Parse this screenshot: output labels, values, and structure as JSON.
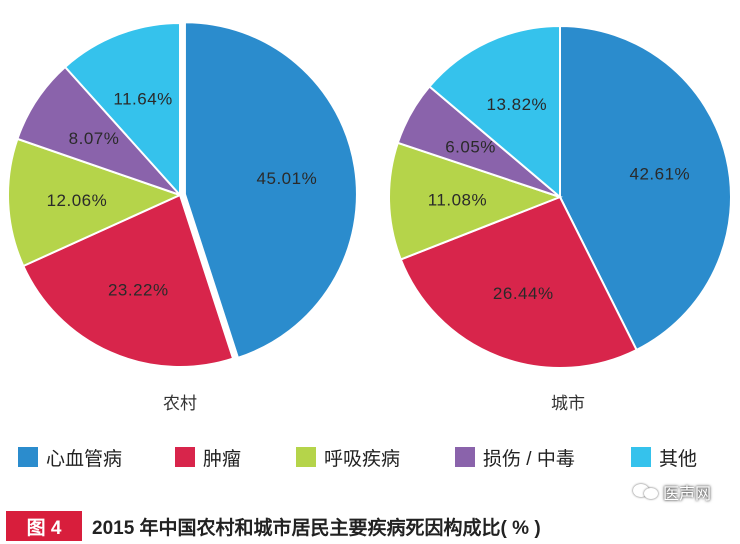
{
  "chart_data": [
    {
      "type": "pie",
      "title": "农村",
      "categories": [
        "心血管病",
        "肿瘤",
        "呼吸疾病",
        "损伤 / 中毒",
        "其他"
      ],
      "values": [
        45.01,
        23.22,
        12.06,
        8.07,
        11.64
      ],
      "labels": [
        "45.01%",
        "23.22%",
        "12.06%",
        "8.07%",
        "11.64%"
      ],
      "exploded_slice": "心血管病"
    },
    {
      "type": "pie",
      "title": "城市",
      "categories": [
        "心血管病",
        "肿瘤",
        "呼吸疾病",
        "损伤 / 中毒",
        "其他"
      ],
      "values": [
        42.61,
        26.44,
        11.08,
        6.05,
        13.82
      ],
      "labels": [
        "42.61%",
        "26.44%",
        "11.08%",
        "6.05%",
        "13.82%"
      ]
    }
  ],
  "legend": [
    {
      "label": "心血管病",
      "color": "#2b8ccd"
    },
    {
      "label": "肿瘤",
      "color": "#d8254b"
    },
    {
      "label": "呼吸疾病",
      "color": "#b5d44a"
    },
    {
      "label": "损伤 / 中毒",
      "color": "#8a63ab"
    },
    {
      "label": "其他",
      "color": "#35c2ec"
    }
  ],
  "figure": {
    "badge": "图 4",
    "caption": "2015 年中国农村和城市居民主要疾病死因构成比( % )"
  },
  "watermark": {
    "text": "医声网",
    "icon": "wechat-icon"
  }
}
